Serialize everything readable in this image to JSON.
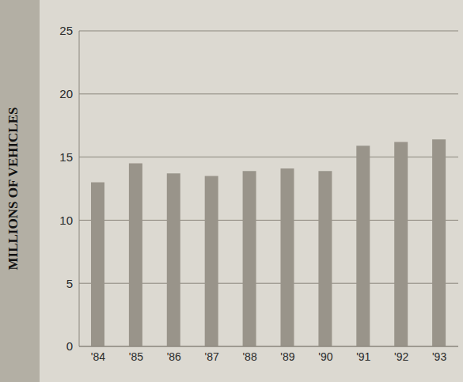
{
  "chart_data": {
    "type": "bar",
    "y_label": "MILLIONS OF VEHICLES",
    "categories": [
      "'84",
      "'85",
      "'86",
      "'87",
      "'88",
      "'89",
      "'90",
      "'91",
      "'92",
      "'93"
    ],
    "values": [
      13.0,
      14.5,
      13.7,
      13.5,
      13.9,
      14.1,
      13.9,
      15.9,
      16.2,
      16.4
    ],
    "color": "#99948a",
    "ylim": [
      0,
      25
    ],
    "yticks": [
      0,
      5,
      10,
      15,
      20,
      25
    ],
    "grid": true
  }
}
